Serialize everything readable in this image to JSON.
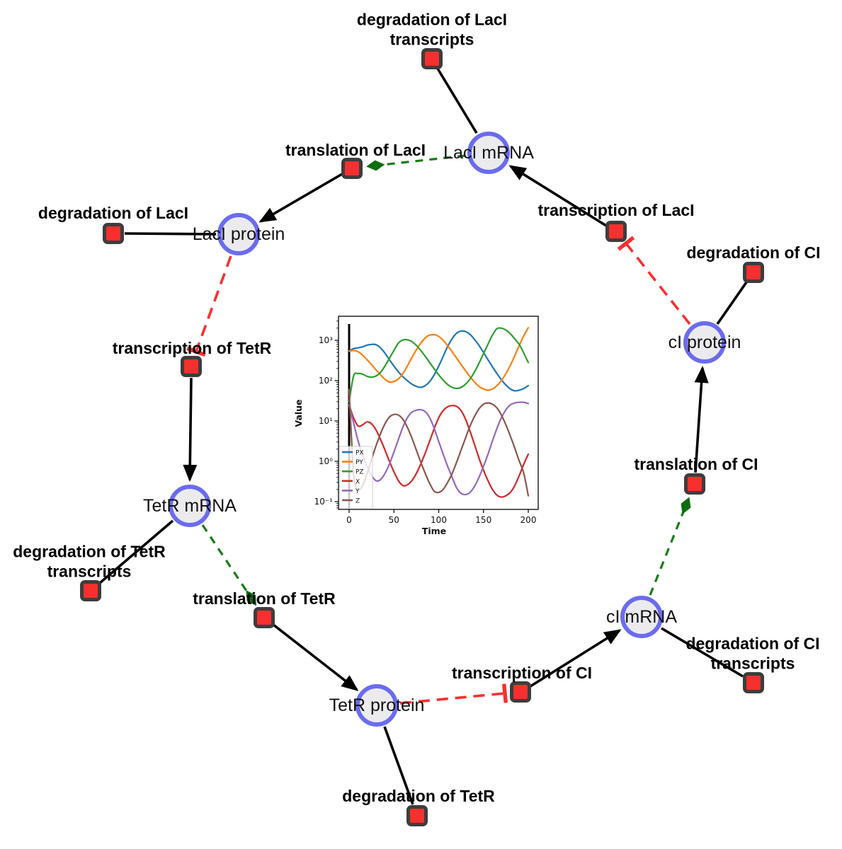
{
  "network": {
    "species": [
      {
        "id": "laci-mrna",
        "label": "LacI mRNA"
      },
      {
        "id": "laci-protein",
        "label": "LacI protein"
      },
      {
        "id": "tetr-mrna",
        "label": "TetR mRNA"
      },
      {
        "id": "tetr-protein",
        "label": "TetR protein"
      },
      {
        "id": "ci-mrna",
        "label": "cI mRNA"
      },
      {
        "id": "ci-protein",
        "label": "cI protein"
      }
    ],
    "reactions": [
      {
        "id": "deg-laci-transcripts",
        "label": "degradation of LacI transcripts"
      },
      {
        "id": "translation-laci",
        "label": "translation of LacI"
      },
      {
        "id": "transcription-laci",
        "label": "transcription of LacI"
      },
      {
        "id": "deg-laci",
        "label": "degradation of LacI"
      },
      {
        "id": "deg-ci",
        "label": "degradation of CI"
      },
      {
        "id": "transcription-tetr",
        "label": "transcription of TetR"
      },
      {
        "id": "translation-ci",
        "label": "translation of CI"
      },
      {
        "id": "deg-tetr-transcripts",
        "label": "degradation of TetR transcripts"
      },
      {
        "id": "translation-tetr",
        "label": "translation of TetR"
      },
      {
        "id": "deg-ci-transcripts",
        "label": "degradation of CI transcripts"
      },
      {
        "id": "transcription-ci",
        "label": "transcription of CI"
      },
      {
        "id": "deg-tetr",
        "label": "degradation of TetR"
      }
    ],
    "colors": {
      "species_fill": "#ebebee",
      "species_border": "#6b6bf0",
      "reaction_fill": "#f5302e",
      "reaction_border": "#3d3d3d",
      "edge": "#000000",
      "activation_edge": "#177d14",
      "inhibition_edge": "#fb2e2e"
    }
  },
  "chart_data": {
    "type": "line",
    "title": "",
    "xlabel": "Time",
    "ylabel": "Value",
    "y_scale": "log",
    "grid": false,
    "legend_position": "lower left",
    "x_ticks": [
      0,
      50,
      100,
      150,
      200
    ],
    "y_tick_labels": [
      "10⁻¹",
      "10⁰",
      "10¹",
      "10²",
      "10³"
    ],
    "y_tick_exponents": [
      -1,
      0,
      1,
      2,
      3
    ],
    "xlim": [
      -12,
      211
    ],
    "ylim_log10": [
      -1.2,
      3.6
    ],
    "vline_x": 0,
    "x": [
      0,
      5,
      10,
      15,
      20,
      25,
      30,
      35,
      40,
      45,
      50,
      55,
      60,
      65,
      70,
      75,
      80,
      85,
      90,
      95,
      100,
      105,
      110,
      115,
      120,
      125,
      130,
      135,
      140,
      145,
      150,
      155,
      160,
      165,
      170,
      175,
      180,
      185,
      190,
      195,
      200
    ],
    "series": [
      {
        "name": "PX",
        "color": "#1f77b4",
        "values": [
          550,
          620,
          650,
          690,
          760,
          790,
          780,
          650,
          480,
          330,
          230,
          165,
          125,
          100,
          82,
          72,
          68,
          75,
          95,
          140,
          230,
          400,
          700,
          1100,
          1500,
          1700,
          1650,
          1400,
          1050,
          750,
          500,
          330,
          220,
          150,
          105,
          78,
          62,
          56,
          58,
          64,
          75
        ]
      },
      {
        "name": "PY",
        "color": "#ff7f0e",
        "values": [
          540,
          560,
          520,
          430,
          330,
          250,
          185,
          140,
          108,
          92,
          95,
          110,
          150,
          230,
          370,
          580,
          850,
          1150,
          1350,
          1380,
          1250,
          1000,
          740,
          520,
          360,
          250,
          175,
          125,
          92,
          72,
          62,
          58,
          62,
          75,
          100,
          150,
          240,
          420,
          750,
          1300,
          2050
        ]
      },
      {
        "name": "PZ",
        "color": "#2ca02c",
        "values": [
          30,
          130,
          150,
          145,
          128,
          122,
          130,
          160,
          230,
          360,
          560,
          850,
          1020,
          1030,
          930,
          750,
          560,
          400,
          280,
          195,
          140,
          103,
          80,
          68,
          64,
          68,
          82,
          110,
          165,
          270,
          470,
          800,
          1350,
          1950,
          2000,
          1800,
          1450,
          1080,
          780,
          480,
          280
        ]
      },
      {
        "name": "X",
        "color": "#d62728",
        "values": [
          25,
          12,
          7.5,
          8,
          9.5,
          8.5,
          6,
          3.5,
          1.9,
          1.0,
          0.55,
          0.33,
          0.25,
          0.26,
          0.33,
          0.5,
          0.85,
          1.6,
          3.2,
          6.5,
          12,
          18,
          22.5,
          24,
          23,
          18,
          11,
          5.5,
          2.6,
          1.2,
          0.6,
          0.33,
          0.2,
          0.145,
          0.13,
          0.14,
          0.17,
          0.25,
          0.45,
          0.85,
          1.5
        ]
      },
      {
        "name": "Y",
        "color": "#9467bd",
        "values": [
          25,
          9,
          3.2,
          1.4,
          0.75,
          0.45,
          0.33,
          0.35,
          0.5,
          0.85,
          1.7,
          3.5,
          7,
          12,
          16.5,
          18.5,
          19,
          17,
          12,
          6.5,
          3.1,
          1.5,
          0.75,
          0.4,
          0.22,
          0.16,
          0.15,
          0.17,
          0.24,
          0.4,
          0.75,
          1.5,
          3.2,
          6.5,
          12,
          19,
          25,
          28,
          29,
          29,
          27
        ]
      },
      {
        "name": "Z",
        "color": "#8c564b",
        "values": [
          60,
          0.5,
          0.2,
          0.25,
          0.5,
          1.1,
          2.4,
          4.8,
          8.5,
          12.5,
          14.5,
          14,
          11,
          7,
          3.8,
          1.9,
          0.95,
          0.5,
          0.28,
          0.18,
          0.17,
          0.2,
          0.3,
          0.5,
          0.95,
          1.9,
          3.8,
          7.5,
          13,
          20,
          26,
          28,
          26,
          21,
          14,
          8,
          4.2,
          2.1,
          1.0,
          0.5,
          0.14
        ]
      }
    ]
  }
}
